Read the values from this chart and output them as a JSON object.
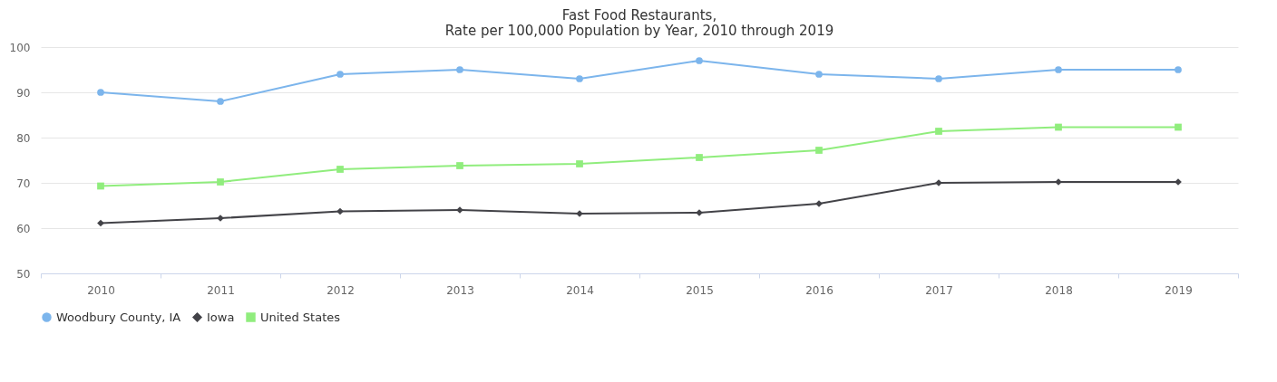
{
  "chart_data": {
    "type": "line",
    "title": "Fast Food Restaurants,\nRate per 100,000 Population by Year, 2010 through 2019",
    "categories": [
      "2010",
      "2011",
      "2012",
      "2013",
      "2014",
      "2015",
      "2016",
      "2017",
      "2018",
      "2019"
    ],
    "series": [
      {
        "name": "Woodbury County, IA",
        "color": "#7cb5ec",
        "marker": "circle",
        "values": [
          90,
          88,
          94,
          95,
          93,
          97,
          94,
          93,
          95,
          95
        ]
      },
      {
        "name": "Iowa",
        "color": "#434348",
        "marker": "diamond",
        "values": [
          61.1,
          62.2,
          63.7,
          64,
          63.2,
          63.4,
          65.4,
          70,
          70.2,
          70.2
        ]
      },
      {
        "name": "United States",
        "color": "#90ed7d",
        "marker": "square",
        "values": [
          69.3,
          70.2,
          73,
          73.8,
          74.2,
          75.6,
          77.2,
          81.4,
          82.3,
          82.3
        ]
      }
    ],
    "ylim": [
      50,
      100
    ],
    "yticks": [
      50,
      60,
      70,
      80,
      90,
      100
    ],
    "grid": "y",
    "legend": "bottom",
    "line_style": "solid"
  }
}
